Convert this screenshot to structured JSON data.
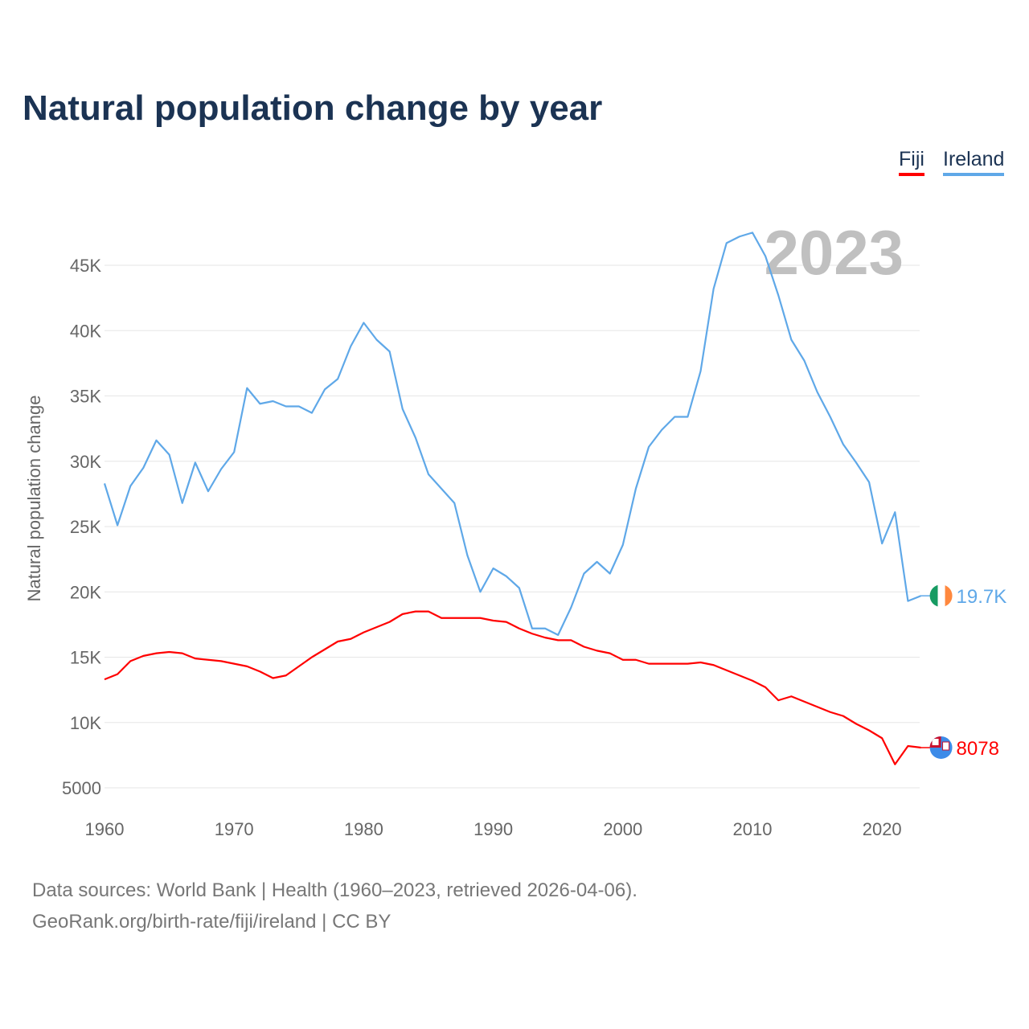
{
  "title": "Natural population change by year",
  "legend": [
    {
      "label": "Fiji",
      "color": "#ff0000"
    },
    {
      "label": "Ireland",
      "color": "#5fa8e8"
    }
  ],
  "source": {
    "line1": "Data sources: World Bank | Health (1960–2023, retrieved 2026-04-06).",
    "line2": "GeoRank.org/birth-rate/fiji/ireland | CC BY"
  },
  "chart_data": {
    "type": "line",
    "title": "Natural population change by year",
    "ylabel": "Natural population change",
    "xlabel": "",
    "year_label": "2023",
    "xlim": [
      1960,
      2023
    ],
    "ylim": [
      5000,
      47500
    ],
    "xticks": [
      1960,
      1970,
      1980,
      1990,
      2000,
      2010,
      2020
    ],
    "xtick_labels": [
      "1960",
      "1970",
      "1980",
      "1990",
      "2000",
      "2010",
      "2020"
    ],
    "yticks": [
      5000,
      10000,
      15000,
      20000,
      25000,
      30000,
      35000,
      40000,
      45000
    ],
    "ytick_labels": [
      "5000",
      "10K",
      "15K",
      "20K",
      "25K",
      "30K",
      "35K",
      "40K",
      "45K"
    ],
    "grid": true,
    "legend_position": "top-right",
    "x": [
      1960,
      1961,
      1962,
      1963,
      1964,
      1965,
      1966,
      1967,
      1968,
      1969,
      1970,
      1971,
      1972,
      1973,
      1974,
      1975,
      1976,
      1977,
      1978,
      1979,
      1980,
      1981,
      1982,
      1983,
      1984,
      1985,
      1986,
      1987,
      1988,
      1989,
      1990,
      1991,
      1992,
      1993,
      1994,
      1995,
      1996,
      1997,
      1998,
      1999,
      2000,
      2001,
      2002,
      2003,
      2004,
      2005,
      2006,
      2007,
      2008,
      2009,
      2010,
      2011,
      2012,
      2013,
      2014,
      2015,
      2016,
      2017,
      2018,
      2019,
      2020,
      2021,
      2022,
      2023
    ],
    "series": [
      {
        "name": "Fiji",
        "color": "#ff0000",
        "end_label": "8078",
        "values": [
          13300,
          13700,
          14700,
          15100,
          15300,
          15400,
          15300,
          14900,
          14800,
          14700,
          14500,
          14300,
          13900,
          13400,
          13600,
          14300,
          15000,
          15600,
          16200,
          16400,
          16900,
          17300,
          17700,
          18300,
          18500,
          18500,
          18000,
          18000,
          18000,
          18000,
          17800,
          17700,
          17200,
          16800,
          16500,
          16300,
          16300,
          15800,
          15500,
          15300,
          14800,
          14800,
          14500,
          14500,
          14500,
          14500,
          14600,
          14400,
          14000,
          13600,
          13200,
          12700,
          11700,
          12000,
          11600,
          11200,
          10800,
          10500,
          9900,
          9400,
          8800,
          6800,
          8200,
          8078
        ]
      },
      {
        "name": "Ireland",
        "color": "#5fa8e8",
        "end_label": "19.7K",
        "values": [
          28300,
          25100,
          28100,
          29500,
          31600,
          30500,
          26800,
          29900,
          27700,
          29400,
          30700,
          35600,
          34400,
          34600,
          34200,
          34200,
          33700,
          35500,
          36300,
          38800,
          40600,
          39300,
          38400,
          34000,
          31800,
          29000,
          27900,
          26800,
          22800,
          20000,
          21800,
          21200,
          20300,
          17200,
          17200,
          16700,
          18800,
          21400,
          22300,
          21400,
          23600,
          27900,
          31100,
          32400,
          33400,
          33400,
          36900,
          43200,
          46700,
          47200,
          47500,
          45700,
          42700,
          39300,
          37700,
          35300,
          33400,
          31300,
          29900,
          28400,
          23700,
          26100,
          19300,
          19700
        ]
      }
    ]
  }
}
